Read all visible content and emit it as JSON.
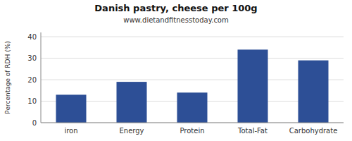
{
  "chart_data": {
    "type": "bar",
    "title": "Danish pastry, cheese per 100g",
    "subtitle": "www.dietandfitnesstoday.com",
    "categories": [
      "iron",
      "Energy",
      "Protein",
      "Total-Fat",
      "Carbohydrate"
    ],
    "values": [
      13,
      19,
      14,
      34,
      29
    ],
    "color": "#2d4f96",
    "ylabel": "Percentage of RDH (%)",
    "ylim": [
      0,
      42
    ],
    "yticks": [
      0,
      10,
      20,
      30,
      40
    ],
    "grid": true
  }
}
